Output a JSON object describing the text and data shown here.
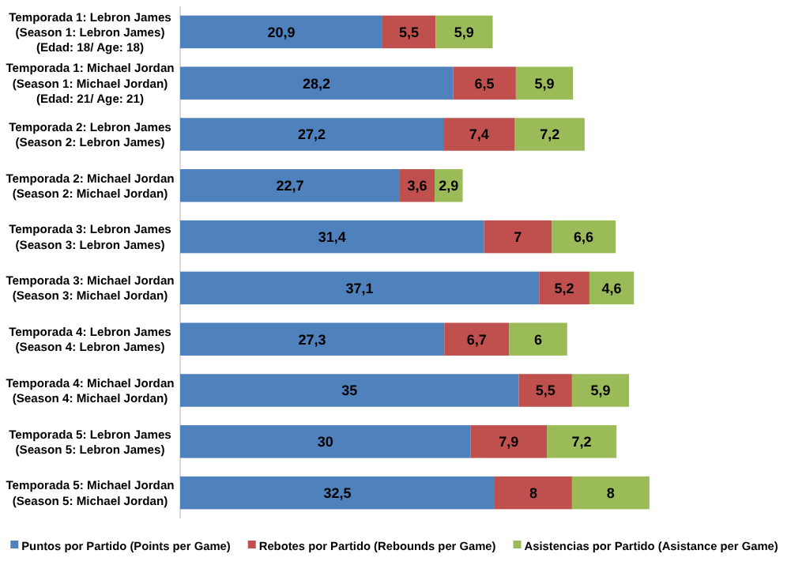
{
  "chart_data": {
    "type": "bar",
    "orientation": "horizontal",
    "stacked": true,
    "legend": "bottom",
    "grid": false,
    "tick_labels": "y",
    "categories": [
      "Temporada 1: Lebron James\n(Season 1: Lebron James)\n(Edad: 18/ Age: 18)",
      "Temporada 1: Michael Jordan\n(Season 1: Michael Jordan)\n(Edad: 21/ Age: 21)",
      "Temporada 2: Lebron James\n(Season 2: Lebron James)",
      "Temporada 2: Michael Jordan\n(Season 2: Michael Jordan)",
      "Temporada 3: Lebron James\n(Season 3: Lebron James)",
      "Temporada 3: Michael Jordan\n(Season 3: Michael Jordan)",
      "Temporada 4: Lebron James\n(Season 4: Lebron James)",
      "Temporada 4: Michael Jordan\n(Season 4: Michael Jordan)",
      "Temporada 5: Lebron James\n(Season 5: Lebron James)",
      "Temporada 5: Michael Jordan\n(Season 5: Michael Jordan)"
    ],
    "series": [
      {
        "name": "Puntos por Partido (Points per Game)",
        "color": "#4f81bd",
        "values": [
          20.9,
          28.2,
          27.2,
          22.7,
          31.4,
          37.1,
          27.3,
          35,
          30,
          32.5
        ],
        "value_labels": [
          "20,9",
          "28,2",
          "27,2",
          "22,7",
          "31,4",
          "37,1",
          "27,3",
          "35",
          "30",
          "32,5"
        ]
      },
      {
        "name": "Rebotes por Partido (Rebounds per Game)",
        "color": "#c0504d",
        "values": [
          5.5,
          6.5,
          7.4,
          3.6,
          7,
          5.2,
          6.7,
          5.5,
          7.9,
          8
        ],
        "value_labels": [
          "5,5",
          "6,5",
          "7,4",
          "3,6",
          "7",
          "5,2",
          "6,7",
          "5,5",
          "7,9",
          "8"
        ]
      },
      {
        "name": "Asistencias por Partido (Asistance per Game)",
        "color": "#9bbb59",
        "values": [
          5.9,
          5.9,
          7.2,
          2.9,
          6.6,
          4.6,
          6,
          5.9,
          7.2,
          8
        ],
        "value_labels": [
          "5,9",
          "5,9",
          "7,2",
          "2,9",
          "6,6",
          "4,6",
          "6",
          "5,9",
          "7,2",
          "8"
        ]
      }
    ]
  }
}
